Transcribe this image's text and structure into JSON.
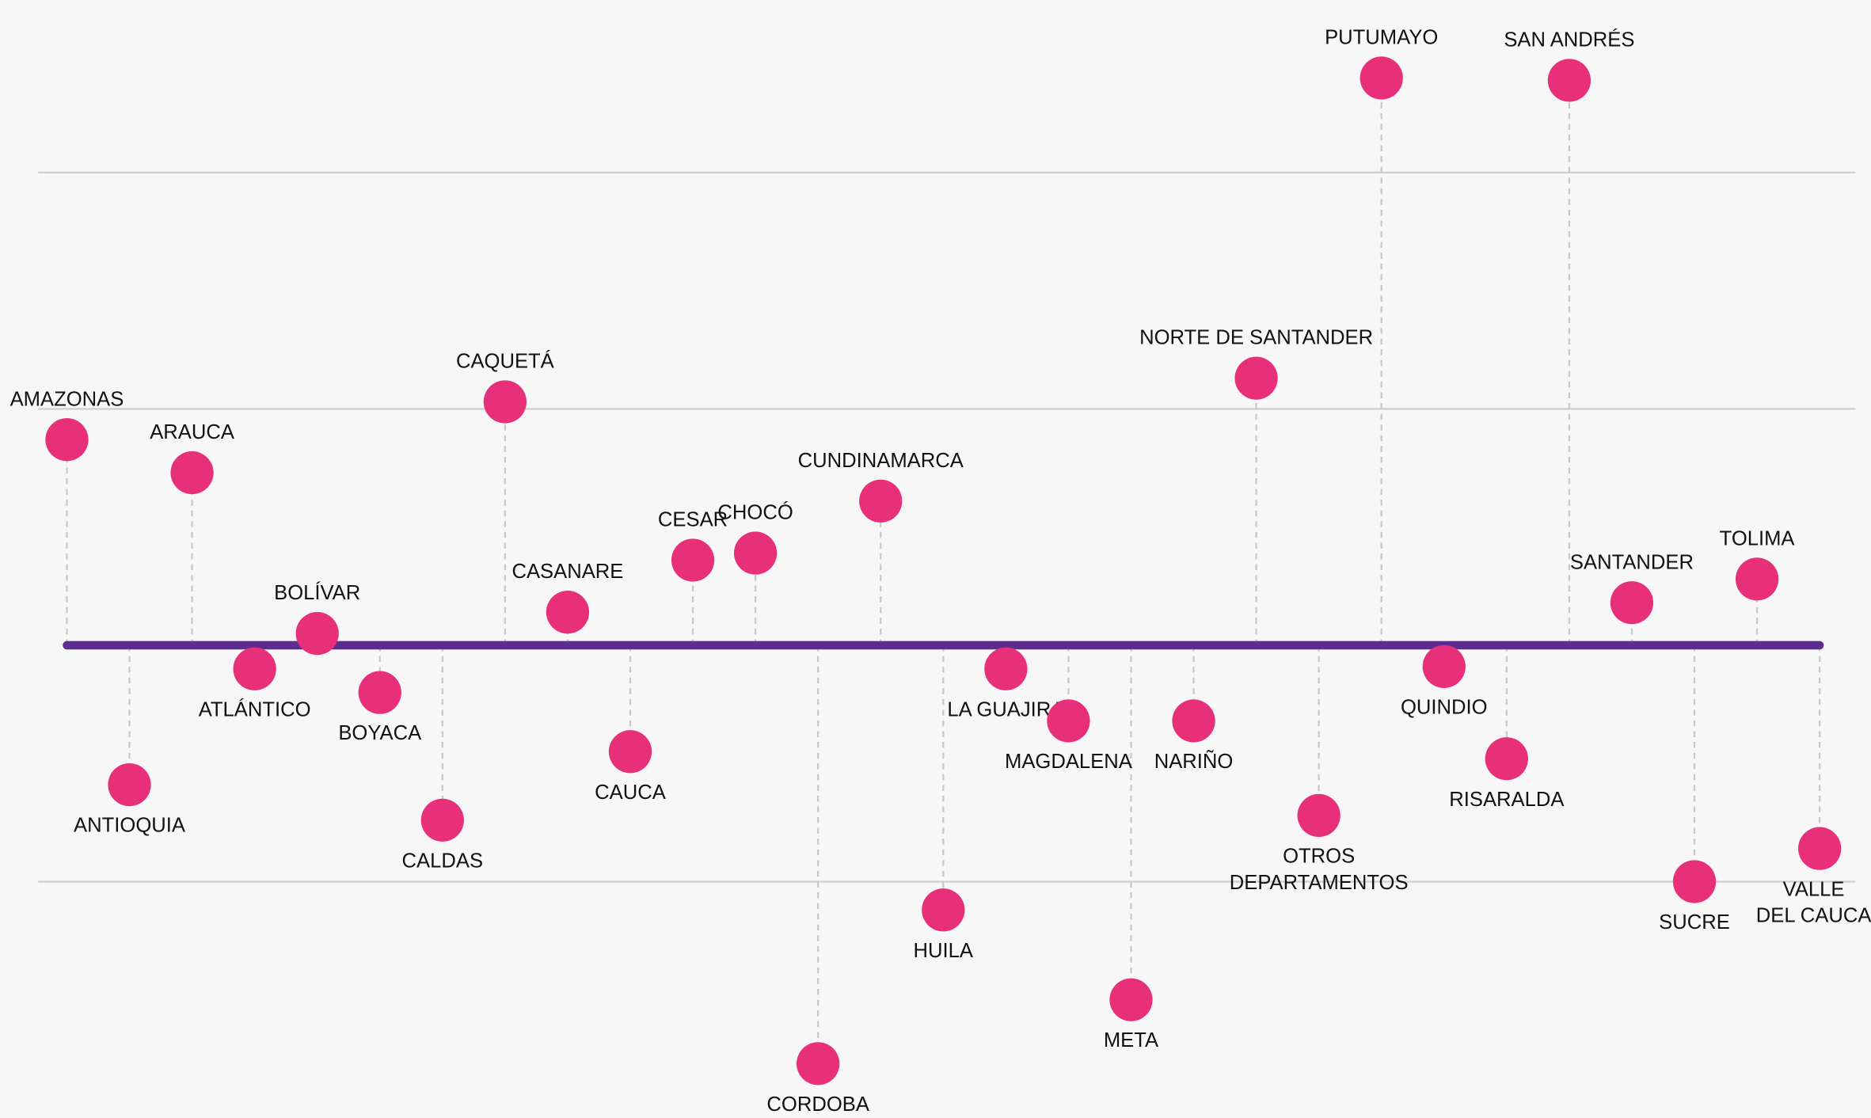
{
  "chart_data": {
    "type": "lollipop",
    "categories": [
      "AMAZONAS",
      "ANTIOQUIA",
      "ARAUCA",
      "ATLÁNTICO",
      "BOLÍVAR",
      "BOYACA",
      "CALDAS",
      "CAQUETÁ",
      "CASANARE",
      "CAUCA",
      "CESAR",
      "CHOCÓ",
      "CORDOBA",
      "CUNDINAMARCA",
      "HUILA",
      "LA GUAJIRA",
      "MAGDALENA",
      "META",
      "NARIÑO",
      "NORTE DE SANTANDER",
      "OTROS DEPARTAMENTOS",
      "PUTUMAYO",
      "QUINDIO",
      "RISARALDA",
      "SAN ANDRÉS",
      "SANTANDER",
      "SUCRE",
      "TOLIMA",
      "VALLE DEL CAUCA"
    ],
    "values": [
      0.87,
      -0.59,
      0.73,
      -0.1,
      0.05,
      -0.2,
      -0.74,
      1.03,
      0.14,
      -0.45,
      0.36,
      0.39,
      -1.77,
      0.61,
      -1.12,
      -0.1,
      -0.32,
      -1.5,
      -0.32,
      1.13,
      -0.72,
      2.4,
      -0.09,
      -0.48,
      2.39,
      0.18,
      -1.0,
      0.28,
      -0.86
    ],
    "color": "#e8307a",
    "baseline_color": "#5c2d8f",
    "ylim": [
      -2.0,
      2.73
    ],
    "yticks": [
      -1,
      0,
      1,
      2
    ],
    "grid": true
  }
}
